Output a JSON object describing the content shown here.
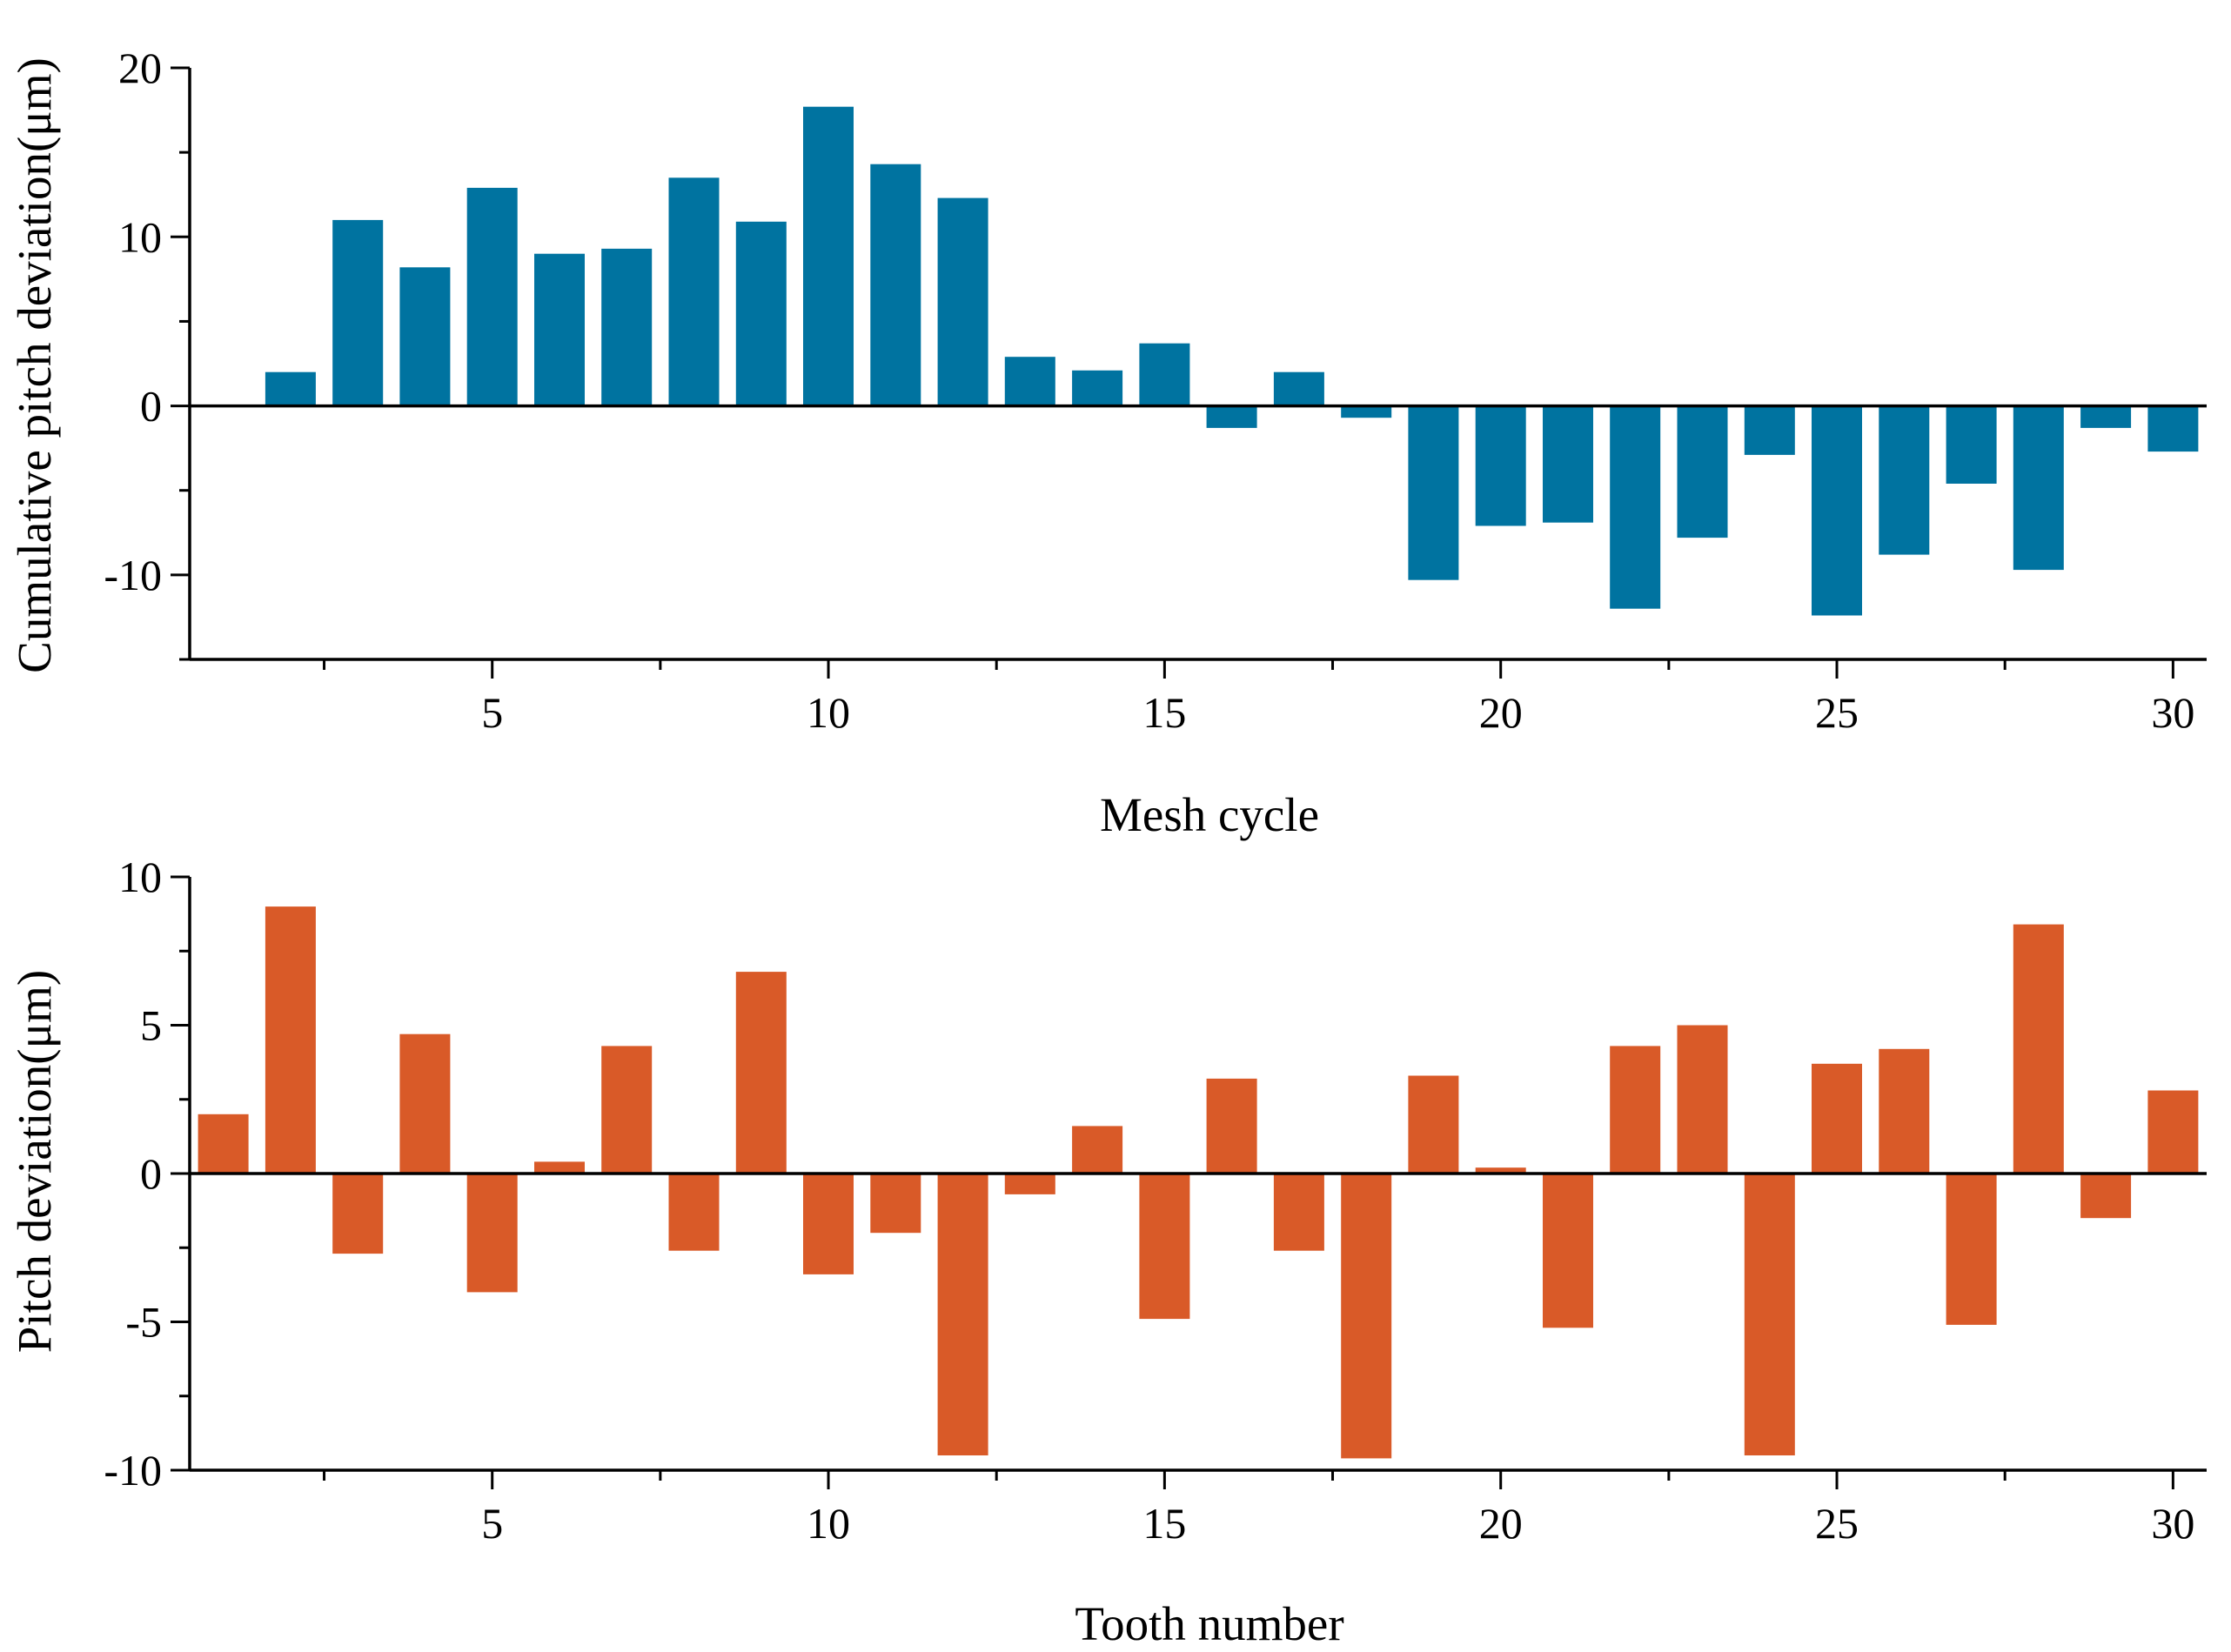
{
  "colors": {
    "series_cumulative": "#0073A0",
    "series_pitch": "#D95A28"
  },
  "chart_data": [
    {
      "type": "bar",
      "title": "",
      "xlabel": "Mesh cycle",
      "ylabel": "Cumulative pitch deviation(μm)",
      "xlim": [
        0.5,
        30.5
      ],
      "ylim": [
        -15,
        20
      ],
      "xticks": [
        5,
        10,
        15,
        20,
        25,
        30
      ],
      "xtick_labels": [
        "5",
        "10",
        "15",
        "20",
        "25",
        "30"
      ],
      "yticks": [
        -10,
        0,
        10,
        20
      ],
      "ytick_labels": [
        "-10",
        "0",
        "10",
        "20"
      ],
      "grid": false,
      "x": [
        1,
        2,
        3,
        4,
        5,
        6,
        7,
        8,
        9,
        10,
        11,
        12,
        13,
        14,
        15,
        16,
        17,
        18,
        19,
        20,
        21,
        22,
        23,
        24,
        25,
        26,
        27,
        28,
        29,
        30
      ],
      "series": [
        {
          "name": "Cumulative pitch deviation",
          "values": [
            0,
            2.0,
            11.0,
            8.2,
            12.9,
            9.0,
            9.3,
            13.5,
            10.9,
            17.7,
            14.3,
            12.3,
            2.9,
            2.1,
            3.7,
            -1.3,
            2.0,
            -0.7,
            -10.3,
            -7.1,
            -6.9,
            -12.0,
            -7.8,
            -2.9,
            -12.4,
            -8.8,
            -4.6,
            -9.7,
            -1.3,
            -2.7
          ]
        }
      ]
    },
    {
      "type": "bar",
      "title": "",
      "xlabel": "Tooth number",
      "ylabel": "Pitch deviation(μm)",
      "xlim": [
        0.5,
        30.5
      ],
      "ylim": [
        -10,
        10
      ],
      "xticks": [
        5,
        10,
        15,
        20,
        25,
        30
      ],
      "xtick_labels": [
        "5",
        "10",
        "15",
        "20",
        "25",
        "30"
      ],
      "yticks": [
        -10,
        -5,
        0,
        5,
        10
      ],
      "ytick_labels": [
        "-10",
        "-5",
        "0",
        "5",
        "10"
      ],
      "grid": false,
      "x": [
        1,
        2,
        3,
        4,
        5,
        6,
        7,
        8,
        9,
        10,
        11,
        12,
        13,
        14,
        15,
        16,
        17,
        18,
        19,
        20,
        21,
        22,
        23,
        24,
        25,
        26,
        27,
        28,
        29,
        30
      ],
      "series": [
        {
          "name": "Pitch deviation",
          "values": [
            2.0,
            9.0,
            -2.7,
            4.7,
            -4.0,
            0.4,
            4.3,
            -2.6,
            6.8,
            -3.4,
            -2.0,
            -9.5,
            -0.7,
            1.6,
            -4.9,
            3.2,
            -2.6,
            -9.6,
            3.3,
            0.2,
            -5.2,
            4.3,
            5.0,
            -9.5,
            3.7,
            4.2,
            -5.1,
            8.4,
            -1.5,
            2.8
          ]
        }
      ]
    }
  ]
}
